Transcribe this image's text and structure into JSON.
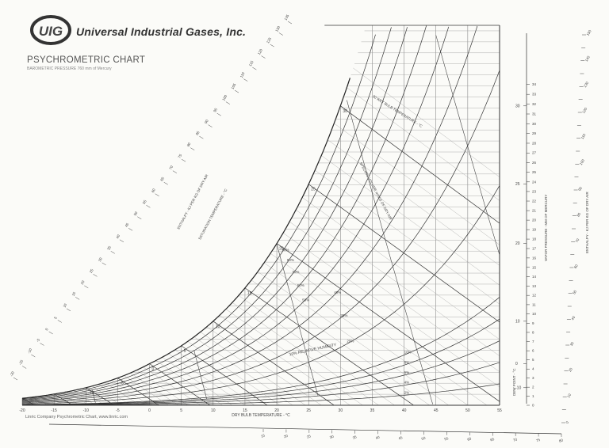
{
  "header": {
    "logo_text": "UIG",
    "company": "Universal Industrial Gases, Inc.",
    "title": "PSYCHROMETRIC CHART",
    "subtitle": "BAROMETRIC PRESSURE 760 mm of Mercury"
  },
  "footer": {
    "credit": "Linric Company Psychrometric Chart, www.linric.com"
  },
  "chart_data": {
    "type": "line",
    "title": "PSYCHROMETRIC CHART",
    "xlabel": "DRY BULB TEMPERATURE - °C",
    "xlim": [
      -20,
      55
    ],
    "x_ticks": [
      -20,
      -15,
      -10,
      -5,
      0,
      5,
      10,
      15,
      20,
      25,
      30,
      35,
      40,
      45,
      50,
      55
    ],
    "dewpoint_axis": {
      "label": "DEW POINT - °C",
      "ticks": [
        -10,
        0,
        10,
        20,
        25,
        30
      ]
    },
    "vapor_pressure_axis": {
      "label": "VAPOR PRESSURE - MM OF MERCURY",
      "range": [
        0,
        34
      ],
      "ticks": [
        0,
        1,
        2,
        3,
        4,
        5,
        6,
        7,
        8,
        9,
        10,
        11,
        12,
        13,
        14,
        15,
        16,
        17,
        18,
        19,
        20,
        21,
        22,
        23,
        24,
        25,
        26,
        27,
        28,
        29,
        30,
        31,
        32,
        33,
        34
      ]
    },
    "enthalpy_axis_right": {
      "label": "ENTHALPY - KJ PER KG OF DRY AIR",
      "ticks": [
        0,
        5,
        10,
        15,
        20,
        25,
        30,
        35,
        40,
        45,
        50,
        55,
        60,
        65,
        70,
        75,
        80,
        85,
        90,
        95,
        100,
        105,
        110,
        115,
        120,
        125,
        130,
        135,
        140,
        145,
        150
      ]
    },
    "enthalpy_axis_left": {
      "label": "ENTHALPY - KJ PER KG OF DRY AIR",
      "ticks": [
        -20,
        -15,
        -10,
        -5,
        0,
        5,
        10,
        15,
        20,
        25,
        30,
        35,
        40,
        45,
        50,
        55,
        60,
        65,
        70,
        75,
        80,
        85,
        90,
        95,
        100,
        105,
        110,
        115,
        120,
        125,
        130,
        135
      ]
    },
    "enthalpy_axis_bottom_ticks": [
      15,
      20,
      25,
      30,
      35,
      40,
      45,
      50,
      55,
      60,
      65,
      70,
      75,
      80
    ],
    "saturation_label": "SATURATION TEMPERATURE - °C",
    "saturation_curve_labels": [
      -10,
      -5,
      0,
      5,
      10,
      15,
      20,
      25,
      30
    ],
    "relative_humidity": {
      "label": "10% RELATIVE HUMIDITY",
      "series": [
        2,
        4,
        6,
        8,
        10,
        20,
        30,
        40,
        50,
        60,
        70,
        80,
        90
      ],
      "labels": [
        "2%",
        "4%",
        "6%",
        "8%",
        "10%",
        "20%",
        "30%",
        "40%",
        "50%",
        "60%",
        "70%",
        "80%",
        "90%"
      ]
    },
    "wet_bulb": {
      "label": "30 WET BULB TEMPERATURE - °C",
      "ticks": [
        -10,
        -5,
        0,
        5,
        10,
        15,
        20,
        25,
        30
      ]
    },
    "specific_volume": {
      "label": "SPECIFIC VOLUME m³/KG OF DRY AIR",
      "series": [
        0.75,
        0.8,
        0.85,
        0.9,
        0.95
      ]
    },
    "grid": true
  }
}
